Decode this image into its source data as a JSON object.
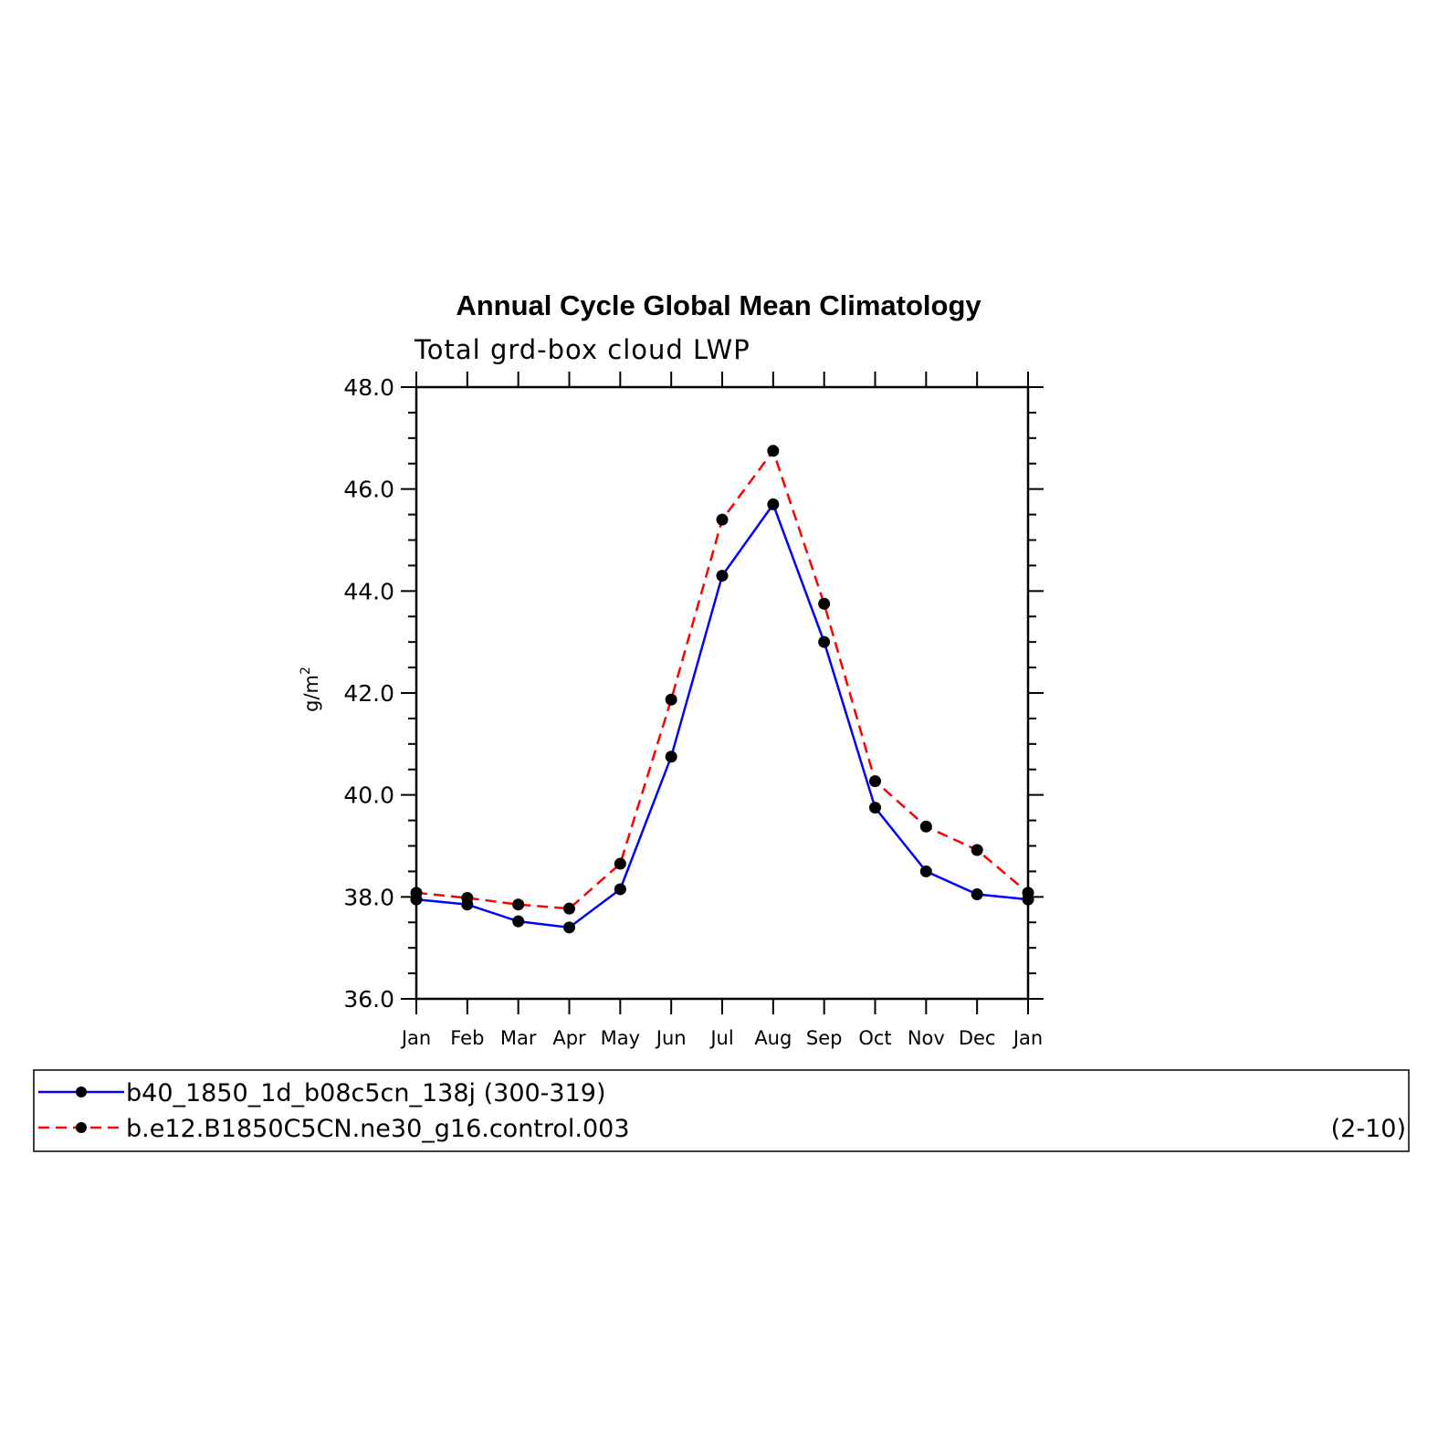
{
  "chart_data": {
    "type": "line",
    "title": "Annual Cycle Global Mean Climatology",
    "subtitle": "Total grd-box cloud LWP",
    "ylabel": "g/m",
    "ylabel_superscript": "2",
    "categories": [
      "Jan",
      "Feb",
      "Mar",
      "Apr",
      "May",
      "Jun",
      "Jul",
      "Aug",
      "Sep",
      "Oct",
      "Nov",
      "Dec",
      "Jan"
    ],
    "ylim": [
      36.0,
      48.0
    ],
    "yticks": [
      "36.0",
      "38.0",
      "40.0",
      "42.0",
      "44.0",
      "46.0",
      "48.0"
    ],
    "grid": false,
    "legend_position": "bottom",
    "series": [
      {
        "name": "b40_1850_1d_b08c5cn_138j (300-319)",
        "color": "#0000ff",
        "style": "solid",
        "values": [
          37.95,
          37.85,
          37.52,
          37.4,
          38.15,
          40.75,
          44.3,
          45.7,
          43.0,
          39.75,
          38.5,
          38.05,
          37.95
        ]
      },
      {
        "name": "b.e12.B1850C5CN.ne30_g16.control.003",
        "color": "#ff0000",
        "style": "dashed",
        "values": [
          38.08,
          37.98,
          37.85,
          37.77,
          38.65,
          41.87,
          45.4,
          46.75,
          43.75,
          40.27,
          39.38,
          38.92,
          38.08
        ]
      }
    ],
    "legend_note": "(2-10)"
  }
}
